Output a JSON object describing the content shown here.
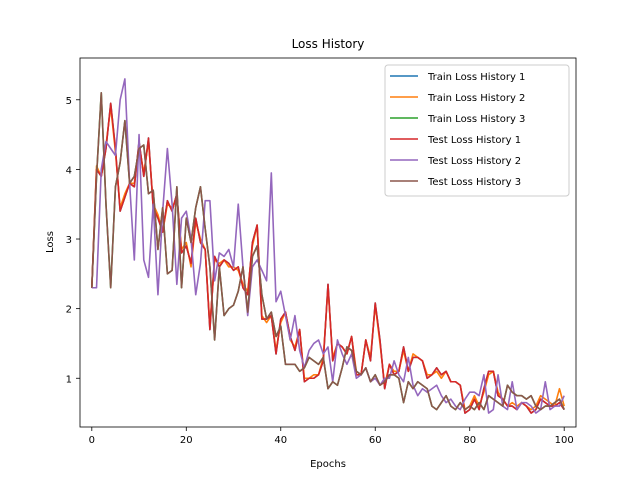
{
  "chart_data": {
    "type": "line",
    "title": "Loss History",
    "xlabel": "Epochs",
    "ylabel": "Loss",
    "xlim": [
      -2.5,
      102.5
    ],
    "ylim": [
      0.3,
      5.6
    ],
    "xticks": [
      0,
      20,
      40,
      60,
      80,
      100
    ],
    "yticks": [
      1,
      2,
      3,
      4,
      5
    ],
    "grid": false,
    "legend_position": "top-right",
    "x": [
      0,
      1,
      2,
      3,
      4,
      5,
      6,
      7,
      8,
      9,
      10,
      11,
      12,
      13,
      14,
      15,
      16,
      17,
      18,
      19,
      20,
      21,
      22,
      23,
      24,
      25,
      26,
      27,
      28,
      29,
      30,
      31,
      32,
      33,
      34,
      35,
      36,
      37,
      38,
      39,
      40,
      41,
      42,
      43,
      44,
      45,
      46,
      47,
      48,
      49,
      50,
      51,
      52,
      53,
      54,
      55,
      56,
      57,
      58,
      59,
      60,
      61,
      62,
      63,
      64,
      65,
      66,
      67,
      68,
      69,
      70,
      71,
      72,
      73,
      74,
      75,
      76,
      77,
      78,
      79,
      80,
      81,
      82,
      83,
      84,
      85,
      86,
      87,
      88,
      89,
      90,
      91,
      92,
      93,
      94,
      95,
      96,
      97,
      98,
      99,
      100
    ],
    "series": [
      {
        "name": "Train Loss History 1",
        "color": "#1f77b4",
        "values": [
          2.3,
          4.0,
          3.9,
          4.3,
          4.95,
          4.3,
          3.4,
          3.6,
          3.8,
          3.75,
          4.4,
          3.9,
          4.45,
          3.45,
          3.3,
          3.1,
          3.55,
          3.4,
          3.65,
          2.8,
          2.9,
          2.65,
          3.3,
          2.95,
          2.85,
          1.7,
          2.75,
          2.6,
          2.7,
          2.65,
          2.55,
          2.6,
          2.3,
          2.2,
          2.95,
          3.2,
          1.85,
          1.85,
          1.9,
          1.35,
          1.85,
          1.95,
          1.6,
          1.4,
          1.7,
          0.95,
          1.0,
          1.0,
          1.05,
          1.25,
          2.35,
          1.25,
          1.5,
          1.45,
          1.35,
          1.6,
          1.05,
          1.05,
          1.55,
          1.25,
          2.08,
          1.55,
          0.85,
          1.2,
          1.05,
          1.1,
          1.45,
          1.1,
          1.3,
          1.3,
          1.25,
          1.0,
          1.05,
          1.15,
          1.05,
          1.1,
          0.95,
          0.95,
          0.9,
          0.5,
          0.55,
          0.7,
          0.55,
          0.85,
          1.1,
          1.1,
          0.75,
          0.7,
          0.6,
          0.6,
          0.55,
          0.65,
          0.6,
          0.5,
          0.55,
          0.7,
          0.65,
          0.6,
          0.6,
          0.65,
          0.55
        ]
      },
      {
        "name": "Train Loss History 2",
        "color": "#ff7f0e",
        "values": [
          2.3,
          4.05,
          3.9,
          4.35,
          4.9,
          4.25,
          3.45,
          3.65,
          3.8,
          3.8,
          4.35,
          3.95,
          4.4,
          3.5,
          3.35,
          3.1,
          3.5,
          3.45,
          3.6,
          2.85,
          2.95,
          2.6,
          3.25,
          3.0,
          2.85,
          1.75,
          2.7,
          2.65,
          2.7,
          2.6,
          2.6,
          2.55,
          2.35,
          2.25,
          2.9,
          3.2,
          1.9,
          1.8,
          1.9,
          1.4,
          1.8,
          1.95,
          1.55,
          1.45,
          1.7,
          1.0,
          1.0,
          1.05,
          1.05,
          1.3,
          2.3,
          1.3,
          1.5,
          1.45,
          1.35,
          1.6,
          1.1,
          1.05,
          1.55,
          1.3,
          2.05,
          1.5,
          0.9,
          1.2,
          1.1,
          1.1,
          1.4,
          1.1,
          1.35,
          1.3,
          1.25,
          1.05,
          1.05,
          1.1,
          1.0,
          1.1,
          0.95,
          0.95,
          0.9,
          0.55,
          0.6,
          0.75,
          0.6,
          0.8,
          1.05,
          1.1,
          0.8,
          0.7,
          0.6,
          0.65,
          0.6,
          0.65,
          0.6,
          0.55,
          0.6,
          0.75,
          0.7,
          0.65,
          0.6,
          0.85,
          0.6
        ]
      },
      {
        "name": "Train Loss History 3",
        "color": "#2ca02c",
        "values": [
          2.3,
          3.9,
          5.1,
          3.5,
          2.3,
          3.75,
          4.1,
          4.7,
          3.8,
          3.9,
          4.3,
          4.35,
          3.65,
          3.7,
          2.85,
          3.45,
          2.5,
          2.55,
          3.75,
          2.3,
          3.3,
          2.95,
          3.45,
          3.75,
          3.15,
          2.6,
          1.55,
          2.6,
          1.9,
          2.0,
          2.05,
          2.25,
          2.6,
          1.95,
          2.75,
          2.9,
          2.2,
          1.85,
          1.95,
          1.6,
          1.75,
          1.2,
          1.2,
          1.2,
          1.1,
          1.15,
          1.3,
          1.25,
          1.2,
          1.3,
          0.85,
          0.95,
          0.9,
          1.15,
          1.45,
          1.4,
          1.1,
          1.05,
          1.15,
          0.95,
          1.05,
          0.9,
          0.95,
          1.05,
          1.05,
          1.0,
          0.65,
          0.95,
          0.85,
          0.95,
          0.9,
          0.85,
          0.6,
          0.55,
          0.65,
          0.75,
          0.6,
          0.55,
          0.65,
          0.55,
          0.6,
          0.55,
          0.65,
          0.55,
          0.75,
          0.7,
          0.65,
          0.6,
          0.9,
          0.8,
          0.75,
          0.75,
          0.7,
          0.75,
          0.6,
          0.55,
          0.6,
          0.6,
          0.65,
          0.7,
          0.55
        ]
      },
      {
        "name": "Test Loss History 1",
        "color": "#d62728",
        "values": [
          2.3,
          4.0,
          3.9,
          4.3,
          4.95,
          4.3,
          3.4,
          3.6,
          3.8,
          3.75,
          4.4,
          3.9,
          4.45,
          3.45,
          3.3,
          3.1,
          3.55,
          3.4,
          3.65,
          2.8,
          2.9,
          2.65,
          3.3,
          2.95,
          2.85,
          1.7,
          2.75,
          2.6,
          2.7,
          2.65,
          2.55,
          2.6,
          2.3,
          2.2,
          2.95,
          3.2,
          1.85,
          1.85,
          1.9,
          1.35,
          1.85,
          1.95,
          1.6,
          1.4,
          1.7,
          0.95,
          1.0,
          1.0,
          1.05,
          1.25,
          2.35,
          1.25,
          1.5,
          1.45,
          1.35,
          1.6,
          1.05,
          1.05,
          1.55,
          1.25,
          2.08,
          1.55,
          0.85,
          1.2,
          1.05,
          1.1,
          1.45,
          1.1,
          1.3,
          1.3,
          1.25,
          1.0,
          1.05,
          1.15,
          1.05,
          1.1,
          0.95,
          0.95,
          0.9,
          0.5,
          0.55,
          0.7,
          0.55,
          0.85,
          1.1,
          1.1,
          0.75,
          0.7,
          0.6,
          0.6,
          0.55,
          0.65,
          0.6,
          0.5,
          0.55,
          0.7,
          0.65,
          0.6,
          0.6,
          0.65,
          0.55
        ]
      },
      {
        "name": "Test Loss History 2",
        "color": "#9467bd",
        "values": [
          2.3,
          2.3,
          4.0,
          4.4,
          4.3,
          4.2,
          5.0,
          5.3,
          3.8,
          2.7,
          4.5,
          2.7,
          2.45,
          3.5,
          2.2,
          3.4,
          4.3,
          3.5,
          2.35,
          3.3,
          3.4,
          3.0,
          2.2,
          2.65,
          3.55,
          3.55,
          2.4,
          2.8,
          2.75,
          2.85,
          2.6,
          3.5,
          2.6,
          1.9,
          2.6,
          2.7,
          2.55,
          2.4,
          3.95,
          2.1,
          2.25,
          1.9,
          1.55,
          1.9,
          1.4,
          1.15,
          1.4,
          1.5,
          1.55,
          1.35,
          1.45,
          0.95,
          1.55,
          1.35,
          1.2,
          1.35,
          1.0,
          1.05,
          1.15,
          0.95,
          1.0,
          0.9,
          1.0,
          1.0,
          1.25,
          1.05,
          0.95,
          1.3,
          0.9,
          0.75,
          0.85,
          0.8,
          0.85,
          0.9,
          0.75,
          0.65,
          0.7,
          0.6,
          0.55,
          0.7,
          0.8,
          0.8,
          0.75,
          1.05,
          0.5,
          0.55,
          1.05,
          0.6,
          0.55,
          0.95,
          0.55,
          0.65,
          0.65,
          0.6,
          0.5,
          0.55,
          0.95,
          0.55,
          0.6,
          0.6,
          0.75
        ]
      },
      {
        "name": "Test Loss History 3",
        "color": "#8c564b",
        "values": [
          2.3,
          3.9,
          5.1,
          3.5,
          2.3,
          3.75,
          4.1,
          4.7,
          3.8,
          3.9,
          4.3,
          4.35,
          3.65,
          3.7,
          2.85,
          3.45,
          2.5,
          2.55,
          3.75,
          2.3,
          3.3,
          2.95,
          3.45,
          3.75,
          3.15,
          2.6,
          1.55,
          2.6,
          1.9,
          2.0,
          2.05,
          2.25,
          2.6,
          1.95,
          2.75,
          2.9,
          2.2,
          1.85,
          1.95,
          1.6,
          1.75,
          1.2,
          1.2,
          1.2,
          1.1,
          1.15,
          1.3,
          1.25,
          1.2,
          1.3,
          0.85,
          0.95,
          0.9,
          1.15,
          1.45,
          1.4,
          1.1,
          1.05,
          1.15,
          0.95,
          1.05,
          0.9,
          0.95,
          1.05,
          1.05,
          1.0,
          0.65,
          0.95,
          0.85,
          0.95,
          0.9,
          0.85,
          0.6,
          0.55,
          0.65,
          0.75,
          0.6,
          0.55,
          0.65,
          0.55,
          0.6,
          0.55,
          0.65,
          0.55,
          0.75,
          0.7,
          0.65,
          0.6,
          0.9,
          0.8,
          0.75,
          0.75,
          0.7,
          0.75,
          0.6,
          0.55,
          0.6,
          0.6,
          0.65,
          0.7,
          0.55
        ]
      }
    ]
  }
}
